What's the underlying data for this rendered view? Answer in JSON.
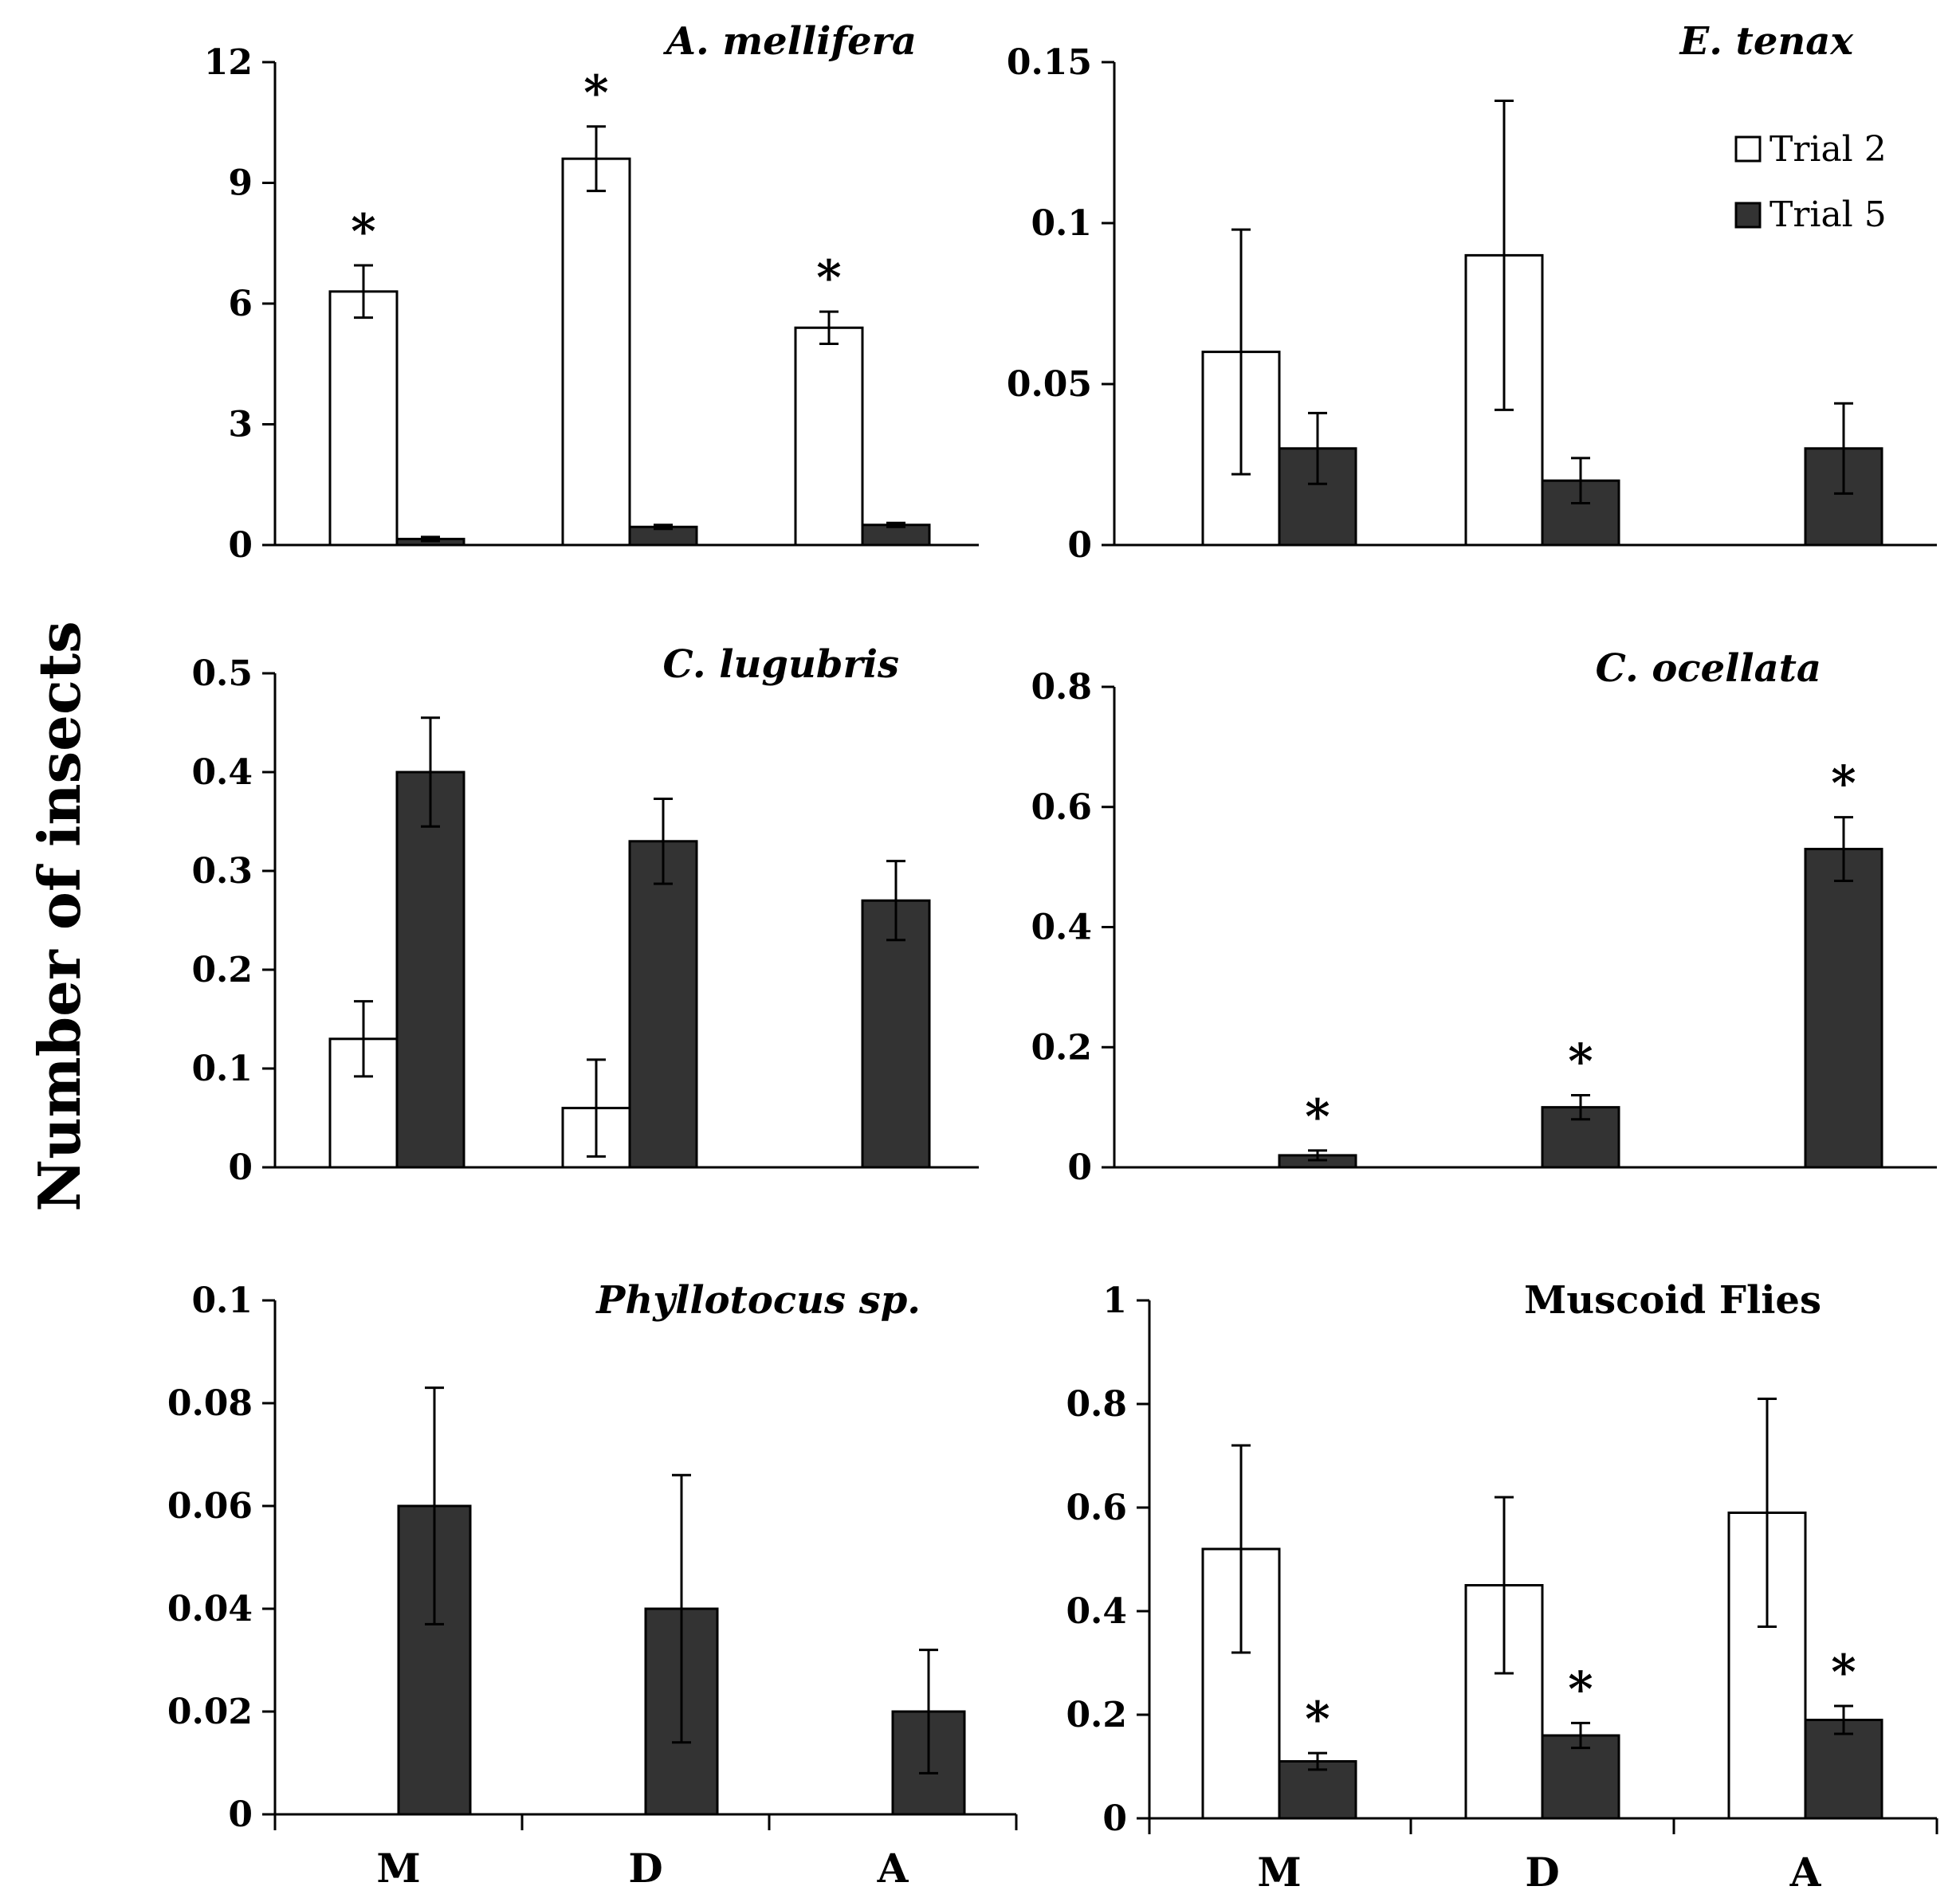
{
  "figure": {
    "ylabel": "Number of insects",
    "legend": {
      "trial2": "Trial 2",
      "trial5": "Trial 5",
      "placement": "top-right of E. tenax panel"
    },
    "colors": {
      "trial2": "#ffffff",
      "trial5": "#333333",
      "axis": "#000000"
    }
  },
  "chart_data": [
    {
      "id": "mellifera",
      "type": "bar",
      "title": "A. mellifera",
      "title_italic": true,
      "categories": [
        "M",
        "D",
        "A"
      ],
      "show_category_labels": false,
      "ylim": [
        0,
        12
      ],
      "yticks": [
        "0",
        "3",
        "6",
        "9",
        "12"
      ],
      "series": [
        {
          "name": "Trial 2",
          "values": [
            6.3,
            9.6,
            5.4
          ],
          "errors": [
            0.65,
            0.8,
            0.4
          ]
        },
        {
          "name": "Trial 5",
          "values": [
            0.15,
            0.45,
            0.5
          ],
          "errors": [
            0.05,
            0.05,
            0.05
          ]
        }
      ],
      "significance": [
        {
          "category": 0,
          "series": 0,
          "label": "*"
        },
        {
          "category": 1,
          "series": 0,
          "label": "*"
        },
        {
          "category": 2,
          "series": 0,
          "label": "*"
        }
      ]
    },
    {
      "id": "tenax",
      "type": "bar",
      "title": "E. tenax",
      "title_italic": true,
      "categories": [
        "M",
        "D",
        "A"
      ],
      "show_category_labels": false,
      "ylim": [
        0,
        0.15
      ],
      "yticks": [
        "0",
        "0.05",
        "0.1",
        "0.15"
      ],
      "series": [
        {
          "name": "Trial 2",
          "values": [
            0.06,
            0.09,
            0
          ],
          "errors": [
            0.038,
            0.048,
            0
          ]
        },
        {
          "name": "Trial 5",
          "values": [
            0.03,
            0.02,
            0.03
          ],
          "errors": [
            0.011,
            0.007,
            0.014
          ]
        }
      ],
      "significance": []
    },
    {
      "id": "lugubris",
      "type": "bar",
      "title": "C. lugubris",
      "title_italic": true,
      "categories": [
        "M",
        "D",
        "A"
      ],
      "show_category_labels": false,
      "ylim": [
        0,
        0.5
      ],
      "yticks": [
        "0",
        "0.1",
        "0.2",
        "0.3",
        "0.4",
        "0.5"
      ],
      "series": [
        {
          "name": "Trial 2",
          "values": [
            0.13,
            0.06,
            0
          ],
          "errors": [
            0.038,
            0.049,
            0
          ]
        },
        {
          "name": "Trial 5",
          "values": [
            0.4,
            0.33,
            0.27
          ],
          "errors": [
            0.055,
            0.043,
            0.04
          ]
        }
      ],
      "significance": []
    },
    {
      "id": "ocellata",
      "type": "bar",
      "title": "C. ocellata",
      "title_italic": true,
      "categories": [
        "M",
        "D",
        "A"
      ],
      "show_category_labels": false,
      "ylim": [
        0,
        0.8
      ],
      "yticks": [
        "0",
        "0.2",
        "0.4",
        "0.6",
        "0.8"
      ],
      "series": [
        {
          "name": "Trial 2",
          "values": [
            0,
            0,
            0
          ],
          "errors": [
            0,
            0,
            0
          ]
        },
        {
          "name": "Trial 5",
          "values": [
            0.02,
            0.1,
            0.53
          ],
          "errors": [
            0.008,
            0.02,
            0.053
          ]
        }
      ],
      "significance": [
        {
          "category": 0,
          "series": 1,
          "label": "*"
        },
        {
          "category": 1,
          "series": 1,
          "label": "*"
        },
        {
          "category": 2,
          "series": 1,
          "label": "*"
        }
      ]
    },
    {
      "id": "phyllotocus",
      "type": "bar",
      "title": "Phyllotocus sp.",
      "title_italic": true,
      "categories": [
        "M",
        "D",
        "A"
      ],
      "show_category_labels": true,
      "ylim": [
        0,
        0.1
      ],
      "yticks": [
        "0",
        "0.02",
        "0.04",
        "0.06",
        "0.08",
        "0.1"
      ],
      "series": [
        {
          "name": "Trial 2",
          "values": [
            0,
            0,
            0
          ],
          "errors": [
            0,
            0,
            0
          ]
        },
        {
          "name": "Trial 5",
          "values": [
            0.06,
            0.04,
            0.02
          ],
          "errors": [
            0.023,
            0.026,
            0.012
          ]
        }
      ],
      "significance": []
    },
    {
      "id": "muscoid",
      "type": "bar",
      "title": "Muscoid Flies",
      "title_italic": false,
      "categories": [
        "M",
        "D",
        "A"
      ],
      "show_category_labels": true,
      "ylim": [
        0,
        1
      ],
      "yticks": [
        "0",
        "0.2",
        "0.4",
        "0.6",
        "0.8",
        "1"
      ],
      "series": [
        {
          "name": "Trial 2",
          "values": [
            0.52,
            0.45,
            0.59
          ],
          "errors": [
            0.2,
            0.17,
            0.22
          ]
        },
        {
          "name": "Trial 5",
          "values": [
            0.11,
            0.16,
            0.19
          ],
          "errors": [
            0.016,
            0.024,
            0.027
          ]
        }
      ],
      "significance": [
        {
          "category": 0,
          "series": 1,
          "label": "*"
        },
        {
          "category": 1,
          "series": 1,
          "label": "*"
        },
        {
          "category": 2,
          "series": 1,
          "label": "*"
        }
      ]
    }
  ]
}
